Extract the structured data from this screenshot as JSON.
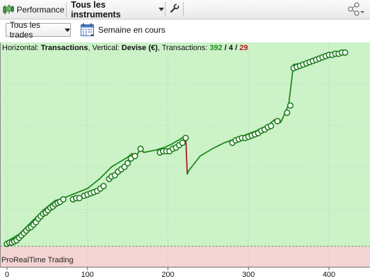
{
  "tabs": {
    "performance_label": "Performance",
    "instruments_label": "Tous les instruments"
  },
  "toolbar": {
    "trades_dropdown_value": "Tous les trades",
    "period_label": "Semaine en cours"
  },
  "chart_header": {
    "horizontal_prefix": "Horizontal: ",
    "horizontal_value": "Transactions",
    "vertical_prefix": ", Vertical: ",
    "vertical_value": "Devise (€)",
    "transactions_prefix": ", Transactions: ",
    "tx_total": "392",
    "tx_slash1": " / ",
    "tx_neutral": "4",
    "tx_slash2": " / ",
    "tx_losing": "29"
  },
  "pane_label": "ProRealTime Trading",
  "colors": {
    "profit_zone": "#ccf2c8",
    "loss_zone": "#f5d5d3",
    "line_up": "#1d8a1d",
    "line_down": "#aa1c1c",
    "marker_fill": "#ffffff",
    "marker_stroke": "#1d7d1d",
    "tx_total": "#1f8a1f",
    "tx_losing": "#b01818"
  },
  "icons": {
    "app_icon": "candlestick-icon",
    "settings_icon": "wrench-icon",
    "share_icon": "share-icon",
    "calendar_icon": "calendar-icon"
  },
  "chart_data": {
    "type": "line",
    "title": "",
    "xlabel": "Transactions",
    "ylabel": "Devise (€)",
    "xlim": [
      -5,
      450
    ],
    "x_ticks": [
      0,
      100,
      200,
      300,
      400
    ],
    "grid": true,
    "series": [
      {
        "points": [
          [
            0,
            4
          ],
          [
            15,
            10
          ],
          [
            30,
            20
          ],
          [
            45,
            30
          ],
          [
            60,
            38
          ],
          [
            70,
            40
          ],
          [
            85,
            44
          ],
          [
            100,
            48
          ],
          [
            115,
            56
          ],
          [
            130,
            66
          ],
          [
            140,
            70
          ],
          [
            150,
            74
          ],
          [
            155,
            77
          ],
          [
            160,
            74
          ],
          [
            166,
            81
          ],
          [
            170,
            78
          ],
          [
            185,
            80
          ],
          [
            195,
            82
          ],
          [
            205,
            85
          ],
          [
            215,
            89
          ],
          [
            222,
            92
          ],
          [
            224,
            60
          ],
          [
            226,
            63
          ],
          [
            240,
            75
          ],
          [
            255,
            81
          ],
          [
            270,
            86
          ],
          [
            290,
            91
          ],
          [
            310,
            96
          ],
          [
            325,
            101
          ],
          [
            332,
            105
          ],
          [
            335,
            102
          ],
          [
            340,
            103
          ],
          [
            345,
            110
          ],
          [
            350,
            118
          ],
          [
            356,
            151
          ],
          [
            365,
            152
          ],
          [
            380,
            156
          ],
          [
            395,
            159
          ],
          [
            410,
            161
          ],
          [
            420,
            162
          ]
        ]
      }
    ],
    "markers": [
      [
        0,
        2
      ],
      [
        3,
        3
      ],
      [
        6,
        3
      ],
      [
        9,
        4
      ],
      [
        12,
        5
      ],
      [
        15,
        7
      ],
      [
        18,
        9
      ],
      [
        21,
        11
      ],
      [
        24,
        13
      ],
      [
        27,
        15
      ],
      [
        30,
        16
      ],
      [
        33,
        18
      ],
      [
        36,
        20
      ],
      [
        39,
        23
      ],
      [
        42,
        25
      ],
      [
        45,
        27
      ],
      [
        48,
        28
      ],
      [
        51,
        30
      ],
      [
        54,
        32
      ],
      [
        57,
        33
      ],
      [
        60,
        35
      ],
      [
        63,
        36
      ],
      [
        66,
        37
      ],
      [
        70,
        39
      ],
      [
        82,
        39
      ],
      [
        86,
        40
      ],
      [
        90,
        40
      ],
      [
        96,
        42
      ],
      [
        100,
        43
      ],
      [
        104,
        44
      ],
      [
        108,
        45
      ],
      [
        112,
        46
      ],
      [
        116,
        48
      ],
      [
        120,
        50
      ],
      [
        127,
        56
      ],
      [
        130,
        58
      ],
      [
        134,
        59
      ],
      [
        138,
        62
      ],
      [
        142,
        64
      ],
      [
        146,
        66
      ],
      [
        150,
        69
      ],
      [
        154,
        73
      ],
      [
        159,
        75
      ],
      [
        166,
        81
      ],
      [
        190,
        78
      ],
      [
        194,
        79
      ],
      [
        198,
        79
      ],
      [
        202,
        79
      ],
      [
        206,
        81
      ],
      [
        210,
        82
      ],
      [
        214,
        84
      ],
      [
        218,
        86
      ],
      [
        222,
        90
      ],
      [
        280,
        86
      ],
      [
        284,
        88
      ],
      [
        288,
        89
      ],
      [
        292,
        90
      ],
      [
        296,
        90
      ],
      [
        300,
        91
      ],
      [
        304,
        92
      ],
      [
        308,
        93
      ],
      [
        312,
        94
      ],
      [
        316,
        96
      ],
      [
        320,
        97
      ],
      [
        324,
        99
      ],
      [
        328,
        100
      ],
      [
        336,
        104
      ],
      [
        348,
        111
      ],
      [
        352,
        117
      ],
      [
        356,
        148
      ],
      [
        360,
        149
      ],
      [
        364,
        150
      ],
      [
        368,
        151
      ],
      [
        372,
        152
      ],
      [
        376,
        153
      ],
      [
        380,
        154
      ],
      [
        384,
        155
      ],
      [
        388,
        156
      ],
      [
        392,
        157
      ],
      [
        396,
        158
      ],
      [
        400,
        159
      ],
      [
        404,
        159
      ],
      [
        408,
        160
      ],
      [
        412,
        160
      ],
      [
        416,
        161
      ],
      [
        420,
        161
      ]
    ]
  }
}
